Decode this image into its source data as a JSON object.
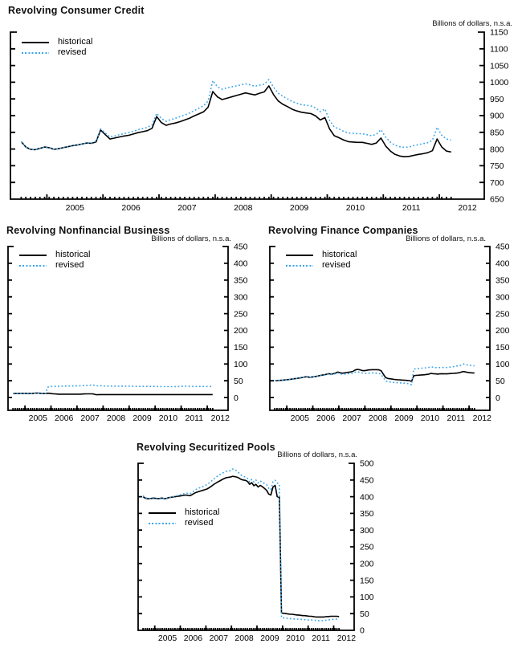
{
  "page": {
    "background": "#ffffff"
  },
  "chart_data": [
    {
      "type": "line",
      "title": "Revolving Consumer Credit",
      "units_label": "Billions of dollars, n.s.a.",
      "xlabel": "",
      "ylabel": "Billions of dollars, n.s.a.",
      "xlim": [
        2004.35,
        2012.8
      ],
      "ylim": [
        650,
        1150
      ],
      "y_ticks": [
        650,
        700,
        750,
        800,
        850,
        900,
        950,
        1000,
        1050,
        1100,
        1150
      ],
      "x_year_labels": [
        2005,
        2006,
        2007,
        2008,
        2009,
        2010,
        2011,
        2012
      ],
      "x_start": 2004.542,
      "x_step_months": 1,
      "x_minor_tick_end": 2012.25,
      "grid": false,
      "legend_position": "top-left",
      "series": [
        {
          "name": "historical",
          "color": "#000000",
          "dash": "solid",
          "values": [
            822,
            806,
            799,
            798,
            802,
            806,
            804,
            799,
            801,
            804,
            807,
            810,
            812,
            815,
            818,
            817,
            821,
            857,
            843,
            830,
            833,
            836,
            839,
            841,
            845,
            849,
            852,
            855,
            862,
            897,
            879,
            871,
            875,
            878,
            882,
            887,
            892,
            899,
            905,
            911,
            925,
            972,
            956,
            948,
            952,
            956,
            960,
            964,
            968,
            965,
            962,
            967,
            971,
            989,
            963,
            944,
            934,
            927,
            919,
            914,
            910,
            908,
            906,
            899,
            887,
            894,
            860,
            840,
            834,
            827,
            822,
            821,
            820,
            820,
            817,
            814,
            818,
            833,
            809,
            794,
            784,
            779,
            777,
            778,
            781,
            784,
            786,
            789,
            795,
            830,
            806,
            794,
            791
          ]
        },
        {
          "name": "revised",
          "color": "#3AA5EC",
          "dash": "dotted",
          "values": [
            822,
            806,
            799,
            798,
            802,
            806,
            804,
            799,
            801,
            804,
            807,
            810,
            812,
            815,
            818,
            818,
            823,
            860,
            848,
            836,
            839,
            843,
            846,
            849,
            853,
            858,
            861,
            865,
            872,
            907,
            891,
            883,
            888,
            892,
            897,
            902,
            908,
            915,
            922,
            929,
            944,
            1005,
            986,
            979,
            983,
            986,
            989,
            992,
            995,
            992,
            988,
            991,
            994,
            1008,
            985,
            967,
            958,
            950,
            942,
            937,
            933,
            931,
            929,
            923,
            912,
            920,
            886,
            866,
            860,
            853,
            848,
            847,
            846,
            846,
            843,
            840,
            844,
            858,
            835,
            821,
            811,
            807,
            805,
            806,
            810,
            813,
            816,
            819,
            826,
            865,
            841,
            830,
            827
          ]
        }
      ]
    },
    {
      "type": "line",
      "title": "Revolving Nonfinancial Business",
      "units_label": "Billions of dollars, n.s.a.",
      "xlabel": "",
      "ylabel": "Billions of dollars, n.s.a.",
      "xlim": [
        2004.35,
        2012.8
      ],
      "ylim": [
        -38,
        450
      ],
      "y_ticks": [
        0,
        50,
        100,
        150,
        200,
        250,
        300,
        350,
        400,
        450
      ],
      "x_year_labels": [
        2005,
        2006,
        2007,
        2008,
        2009,
        2010,
        2011,
        2012
      ],
      "x_start": 2004.542,
      "x_step_months": 1,
      "x_minor_tick_end": 2012.25,
      "grid": false,
      "legend_position": "top-left",
      "series": [
        {
          "name": "historical",
          "color": "#000000",
          "dash": "solid",
          "values": [
            12,
            12,
            12,
            12,
            12.5,
            12.5,
            12.5,
            12,
            12,
            12.5,
            13,
            13.5,
            13,
            12.5,
            12,
            12,
            13,
            12.5,
            11.5,
            11,
            10.5,
            10.2,
            10,
            10,
            10,
            10,
            10,
            10,
            10,
            10,
            10,
            10.2,
            10.5,
            10.8,
            11,
            11,
            11,
            10.8,
            9,
            8.5,
            8.8,
            9,
            9,
            9,
            9,
            9,
            9,
            9,
            9,
            9,
            9,
            9,
            9,
            9,
            9,
            9,
            9,
            9,
            9,
            9,
            9,
            9,
            9,
            9,
            9,
            9,
            9,
            9,
            9,
            9,
            9,
            9,
            9,
            9,
            9,
            9,
            9,
            9,
            9,
            9,
            9,
            9,
            9,
            9,
            9,
            9,
            9,
            9,
            9,
            9,
            9,
            9,
            9
          ]
        },
        {
          "name": "revised",
          "color": "#3AA5EC",
          "dash": "dotted",
          "values": [
            12,
            12,
            12,
            12,
            12.5,
            12.5,
            12.5,
            12,
            12,
            12.5,
            13,
            13.5,
            13,
            12.5,
            12,
            12.5,
            31,
            33,
            33,
            33,
            33.5,
            33.5,
            34,
            34,
            34,
            34.2,
            34.4,
            34.5,
            34.6,
            34.8,
            35,
            35.2,
            35.5,
            35.8,
            36,
            36.5,
            37,
            37.2,
            35.5,
            35,
            35.2,
            35.5,
            34.5,
            34.2,
            34,
            34,
            34,
            34,
            34,
            34,
            34,
            34,
            34,
            34,
            33.8,
            33.6,
            33.5,
            33.4,
            33.3,
            33.2,
            33.2,
            33.2,
            33.2,
            33.2,
            33.2,
            33.2,
            33,
            32.8,
            32.6,
            32.5,
            32.5,
            32.5,
            32.5,
            32.5,
            32.5,
            32.5,
            32.8,
            33,
            33.5,
            34,
            33.8,
            33.5,
            33.2,
            33,
            33,
            33,
            33,
            33,
            33,
            33,
            33,
            33,
            33
          ]
        }
      ]
    },
    {
      "type": "line",
      "title": "Revolving Finance Companies",
      "units_label": "Billions of dollars, n.s.a.",
      "xlabel": "",
      "ylabel": "Billions of dollars, n.s.a.",
      "xlim": [
        2004.35,
        2012.8
      ],
      "ylim": [
        -38,
        450
      ],
      "y_ticks": [
        0,
        50,
        100,
        150,
        200,
        250,
        300,
        350,
        400,
        450
      ],
      "x_year_labels": [
        2005,
        2006,
        2007,
        2008,
        2009,
        2010,
        2011,
        2012
      ],
      "x_start": 2004.542,
      "x_step_months": 1,
      "x_minor_tick_end": 2012.25,
      "grid": false,
      "legend_position": "top-left",
      "series": [
        {
          "name": "historical",
          "color": "#000000",
          "dash": "solid",
          "values": [
            50,
            50.5,
            51,
            51.5,
            52,
            53,
            53.5,
            54,
            55,
            56,
            57,
            58,
            59,
            60,
            61.5,
            62,
            60,
            61,
            62,
            63,
            64.5,
            66,
            67,
            68,
            70,
            71,
            69.5,
            71,
            73,
            76,
            74,
            72.5,
            73.5,
            74.5,
            75.5,
            76.5,
            78,
            82,
            84,
            83,
            81,
            80,
            81,
            82,
            82.5,
            83,
            83,
            83,
            82.5,
            80,
            70,
            60,
            57,
            56,
            55,
            54,
            53.5,
            53,
            52.5,
            52,
            51.5,
            51,
            50.5,
            48,
            65,
            66,
            66.5,
            67,
            67.5,
            68,
            69,
            70,
            72,
            71,
            70.5,
            70,
            70.5,
            71,
            70.5,
            70.5,
            71,
            71.5,
            72,
            72.5,
            73,
            74,
            76,
            77.5,
            76,
            75,
            74,
            73.5,
            73
          ]
        },
        {
          "name": "revised",
          "color": "#3AA5EC",
          "dash": "dotted",
          "values": [
            50,
            50.5,
            51,
            51.5,
            52,
            53,
            53.5,
            54,
            55,
            56,
            57,
            58.5,
            59.5,
            60.5,
            62,
            62.5,
            60,
            61,
            62,
            63,
            64.5,
            65.5,
            66.5,
            67.5,
            69,
            70,
            68.5,
            69.5,
            71,
            73.5,
            71,
            69.5,
            70,
            70.5,
            71,
            71.5,
            72.5,
            75.5,
            77,
            75.5,
            73.5,
            72.5,
            72,
            72.5,
            73,
            73.5,
            73,
            72.5,
            72,
            69,
            60,
            50,
            47.5,
            46.5,
            46,
            45,
            44.5,
            44,
            43.5,
            43,
            42.5,
            42,
            41,
            38,
            85,
            86,
            86.5,
            87,
            87.5,
            88,
            89,
            90,
            91.5,
            90.5,
            89.5,
            89,
            89.5,
            90,
            89.5,
            89.5,
            90,
            91,
            92,
            93,
            94,
            95,
            97,
            100,
            98,
            96.5,
            96,
            95,
            94.5
          ]
        }
      ]
    },
    {
      "type": "line",
      "title": "Revolving Securitized Pools",
      "units_label": "Billions of dollars, n.s.a.",
      "xlabel": "",
      "ylabel": "Billions of dollars, n.s.a.",
      "xlim": [
        2004.35,
        2012.8
      ],
      "ylim": [
        0,
        500
      ],
      "y_ticks": [
        0,
        50,
        100,
        150,
        200,
        250,
        300,
        350,
        400,
        450,
        500
      ],
      "x_year_labels": [
        2005,
        2006,
        2007,
        2008,
        2009,
        2010,
        2011,
        2012
      ],
      "x_start": 2004.542,
      "x_step_months": 1,
      "x_minor_tick_end": 2012.25,
      "grid": false,
      "legend_position": "mid-left",
      "series": [
        {
          "name": "historical",
          "color": "#000000",
          "dash": "solid",
          "values": [
            400,
            396,
            394,
            394,
            395,
            396,
            395,
            394,
            395,
            396,
            394,
            395,
            397,
            398,
            399,
            400,
            401,
            402,
            403,
            404,
            405,
            404,
            403,
            406,
            410,
            413,
            415,
            417,
            419,
            421,
            423,
            427,
            431,
            436,
            440,
            444,
            447,
            451,
            454,
            457,
            458,
            459,
            461,
            460,
            459,
            456,
            452,
            450,
            449,
            446,
            437,
            442,
            433,
            437,
            429,
            434,
            430,
            425,
            419,
            408,
            405,
            429,
            434,
            400,
            398,
            52,
            51,
            50,
            49,
            48,
            48,
            47,
            46,
            46,
            45,
            44,
            44,
            43,
            42,
            42,
            41,
            40,
            40,
            40,
            40,
            40,
            41,
            41,
            42,
            42,
            42,
            42,
            41
          ]
        },
        {
          "name": "revised",
          "color": "#3AA5EC",
          "dash": "dotted",
          "values": [
            403,
            397,
            395,
            394,
            396,
            397,
            394,
            393,
            394,
            396,
            393,
            394,
            396,
            398,
            400,
            401,
            403,
            405,
            407,
            409,
            411,
            410,
            409,
            413,
            418,
            422,
            425,
            428,
            430,
            433,
            436,
            441,
            446,
            452,
            457,
            462,
            466,
            470,
            473,
            476,
            477,
            478,
            483,
            481,
            477,
            471,
            465,
            461,
            459,
            455,
            444,
            452,
            444,
            450,
            441,
            447,
            443,
            440,
            436,
            425,
            421,
            446,
            449,
            441,
            438,
            38,
            37,
            36,
            36,
            35,
            35,
            34,
            34,
            33,
            33,
            32,
            32,
            31,
            31,
            31,
            30,
            30,
            29,
            29,
            29,
            30,
            30,
            31,
            32,
            33,
            34,
            34,
            35
          ]
        }
      ]
    }
  ]
}
